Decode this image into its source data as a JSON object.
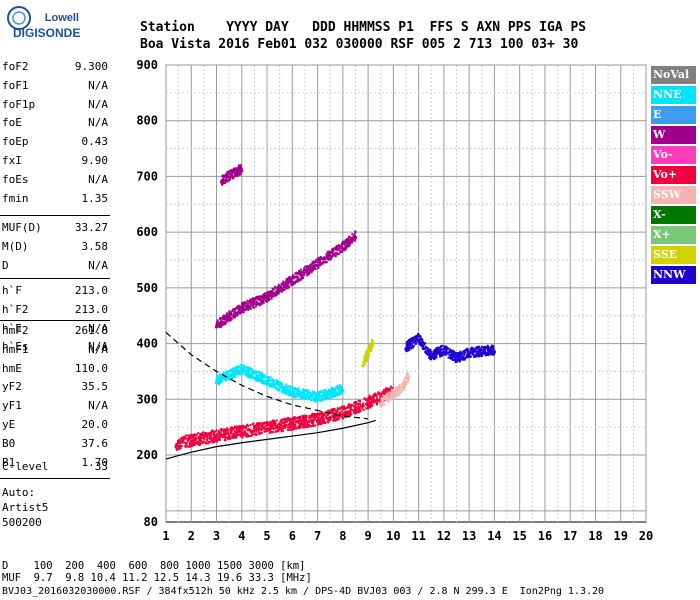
{
  "logo": {
    "brand": "Lowell",
    "product": "DIGISONDE"
  },
  "header": {
    "row1": "Station    YYYY DAY   DDD HHMMSS P1  FFS S AXN PPS IGA PS",
    "row2": "Boa Vista 2016 Feb01 032 030000 RSF 005 2 713 100 03+ 30"
  },
  "params": {
    "group1": [
      {
        "name": "foF2",
        "value": "9.300"
      },
      {
        "name": "foF1",
        "value": "N/A"
      },
      {
        "name": "foF1p",
        "value": "N/A"
      },
      {
        "name": "foE",
        "value": "N/A"
      },
      {
        "name": "foEp",
        "value": "0.43"
      },
      {
        "name": "fxI",
        "value": "9.90"
      },
      {
        "name": "foEs",
        "value": "N/A"
      },
      {
        "name": "fmin",
        "value": "1.35"
      }
    ],
    "group2": [
      {
        "name": "MUF(D)",
        "value": "33.27"
      },
      {
        "name": "M(D)",
        "value": "3.58"
      },
      {
        "name": "D",
        "value": "N/A"
      }
    ],
    "group3": [
      {
        "name": "h`F",
        "value": "213.0"
      },
      {
        "name": "h`F2",
        "value": "213.0"
      },
      {
        "name": "h`E",
        "value": "N/A"
      },
      {
        "name": "h`Es",
        "value": "N/A"
      }
    ],
    "group4": [
      {
        "name": "hmF2",
        "value": "261.8"
      },
      {
        "name": "hmF1",
        "value": "N/A"
      },
      {
        "name": "hmE",
        "value": "110.0"
      },
      {
        "name": "yF2",
        "value": "35.5"
      },
      {
        "name": "yF1",
        "value": "N/A"
      },
      {
        "name": "yE",
        "value": "20.0"
      },
      {
        "name": "B0",
        "value": "37.6"
      },
      {
        "name": "B1",
        "value": "1.70"
      }
    ],
    "clevel": {
      "name": "C-level",
      "value": "33"
    },
    "auto": [
      "Auto:",
      "Artist5",
      "500200"
    ]
  },
  "legend": [
    {
      "label": "NoVal",
      "color": "#808080"
    },
    {
      "label": "NNE",
      "color": "#00e5ff"
    },
    {
      "label": "E",
      "color": "#3c9df0"
    },
    {
      "label": "W",
      "color": "#a0008c"
    },
    {
      "label": "Vo-",
      "color": "#ff3cbe"
    },
    {
      "label": "Vo+",
      "color": "#f0003c"
    },
    {
      "label": "SSW",
      "color": "#f5b4b4"
    },
    {
      "label": "X-",
      "color": "#007800"
    },
    {
      "label": "X+",
      "color": "#78c878"
    },
    {
      "label": "SSE",
      "color": "#d2d200"
    },
    {
      "label": "NNW",
      "color": "#1e00d2"
    }
  ],
  "bottom": {
    "d_label": "D",
    "d_values": "100  200  400  600  800 1000 1500 3000 [km]",
    "muf_label": "MUF",
    "muf_values": "9.7  9.8 10.4 11.2 12.5 14.3 19.6 33.3 [MHz]",
    "footer": "BVJ03_2016032030000.RSF / 384fx512h 50 kHz 2.5 km / DPS-4D BVJ03 003 / 2.8 N 299.3 E  Ion2Png 1.3.20"
  },
  "chart_data": {
    "type": "scatter",
    "title": "",
    "xlabel": "",
    "ylabel": "",
    "xlim": [
      1,
      20
    ],
    "ylim": [
      80,
      900
    ],
    "x_ticks": [
      1,
      2,
      3,
      4,
      5,
      6,
      7,
      8,
      9,
      10,
      11,
      12,
      13,
      14,
      15,
      16,
      17,
      18,
      19,
      20
    ],
    "y_ticks": [
      80,
      200,
      300,
      400,
      500,
      600,
      700,
      800,
      900
    ],
    "grid": true,
    "traces": [
      {
        "name": "F2 O-trace",
        "color_key": "Vo+",
        "points": [
          [
            1.4,
            215
          ],
          [
            2,
            222
          ],
          [
            3,
            230
          ],
          [
            4,
            238
          ],
          [
            5,
            245
          ],
          [
            6,
            252
          ],
          [
            7,
            260
          ],
          [
            7.5,
            266
          ],
          [
            8,
            272
          ],
          [
            8.5,
            280
          ],
          [
            9,
            290
          ],
          [
            9.5,
            300
          ],
          [
            10,
            310
          ]
        ]
      },
      {
        "name": "F2 X-trace",
        "color_key": "SSW",
        "points": [
          [
            9.5,
            290
          ],
          [
            10,
            305
          ],
          [
            10.4,
            320
          ],
          [
            10.6,
            340
          ]
        ]
      },
      {
        "name": "multi-hop 2F",
        "color_key": "W",
        "points": [
          [
            3,
            430
          ],
          [
            4,
            460
          ],
          [
            5,
            480
          ],
          [
            6,
            510
          ],
          [
            7,
            540
          ],
          [
            8,
            570
          ],
          [
            8.5,
            590
          ]
        ]
      },
      {
        "name": "multi-hop 3F",
        "color_key": "W",
        "points": [
          [
            3.2,
            690
          ],
          [
            3.6,
            700
          ],
          [
            4,
            710
          ]
        ]
      },
      {
        "name": "NNW echoes",
        "color_key": "NNW",
        "points": [
          [
            10.5,
            390
          ],
          [
            11,
            405
          ],
          [
            11.5,
            375
          ],
          [
            12,
            385
          ],
          [
            12.5,
            370
          ],
          [
            13,
            380
          ],
          [
            14,
            385
          ]
        ]
      },
      {
        "name": "spread E/NNE",
        "color_key": "NNE",
        "points": [
          [
            3,
            330
          ],
          [
            4,
            350
          ],
          [
            5,
            330
          ],
          [
            6,
            310
          ],
          [
            7,
            300
          ],
          [
            8,
            315
          ]
        ]
      },
      {
        "name": "SSE echoes",
        "color_key": "SSE",
        "points": [
          [
            8.8,
            360
          ],
          [
            9,
            380
          ],
          [
            9.2,
            400
          ]
        ]
      }
    ],
    "profile_curve": {
      "style": "solid",
      "points": [
        [
          1,
          193
        ],
        [
          2,
          205
        ],
        [
          3,
          215
        ],
        [
          4,
          222
        ],
        [
          5,
          228
        ],
        [
          6,
          234
        ],
        [
          7,
          240
        ],
        [
          8,
          248
        ],
        [
          9,
          258
        ],
        [
          9.3,
          262
        ]
      ]
    },
    "scaled_curve": {
      "style": "dashed",
      "points": [
        [
          1,
          420
        ],
        [
          2,
          380
        ],
        [
          3,
          350
        ],
        [
          4,
          325
        ],
        [
          5,
          305
        ],
        [
          6,
          290
        ],
        [
          7,
          280
        ],
        [
          8,
          270
        ],
        [
          9,
          265
        ]
      ]
    }
  }
}
